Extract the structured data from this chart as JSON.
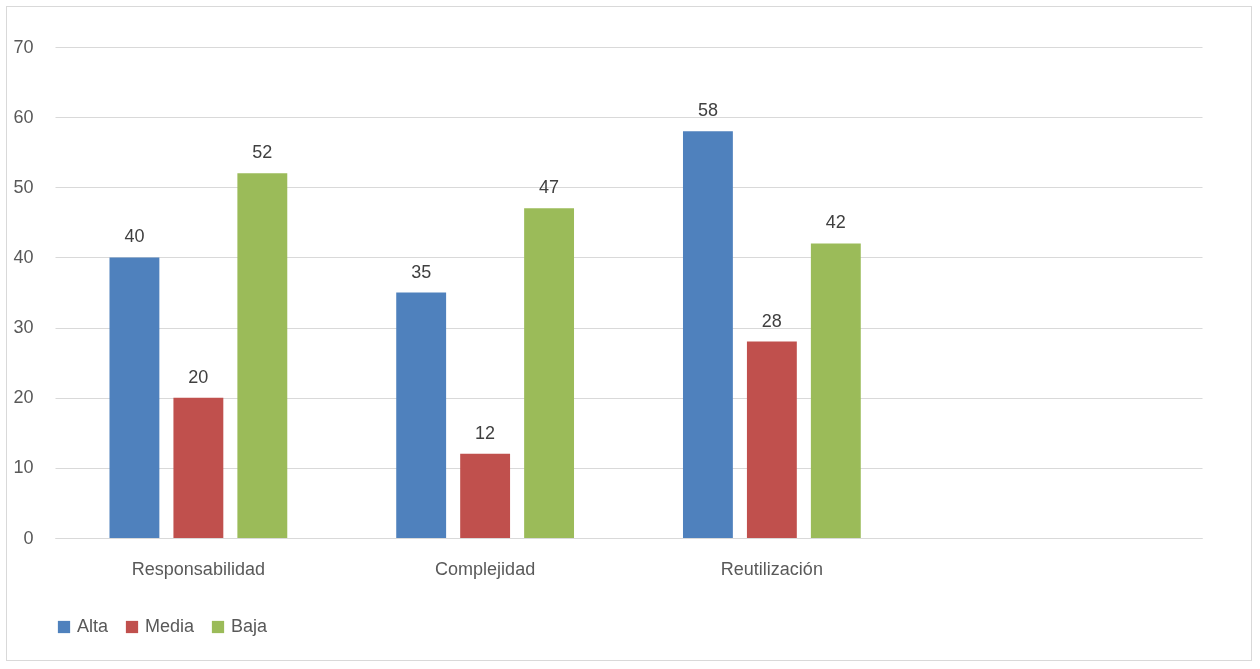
{
  "chart_data": {
    "type": "bar",
    "categories": [
      "Responsabilidad",
      "Complejidad",
      "Reutilización",
      null
    ],
    "series": [
      {
        "name": "Alta",
        "color": "#4f81bd",
        "values": [
          40,
          35,
          58,
          null
        ]
      },
      {
        "name": "Media",
        "color": "#c0504d",
        "values": [
          20,
          12,
          28,
          null
        ]
      },
      {
        "name": "Baja",
        "color": "#9bbb59",
        "values": [
          52,
          47,
          42,
          null
        ]
      }
    ],
    "ylim": [
      0,
      70
    ],
    "yticks": [
      0,
      10,
      20,
      30,
      40,
      50,
      60,
      70
    ],
    "grid": "y",
    "legend": "bottom",
    "data_labels": true
  }
}
